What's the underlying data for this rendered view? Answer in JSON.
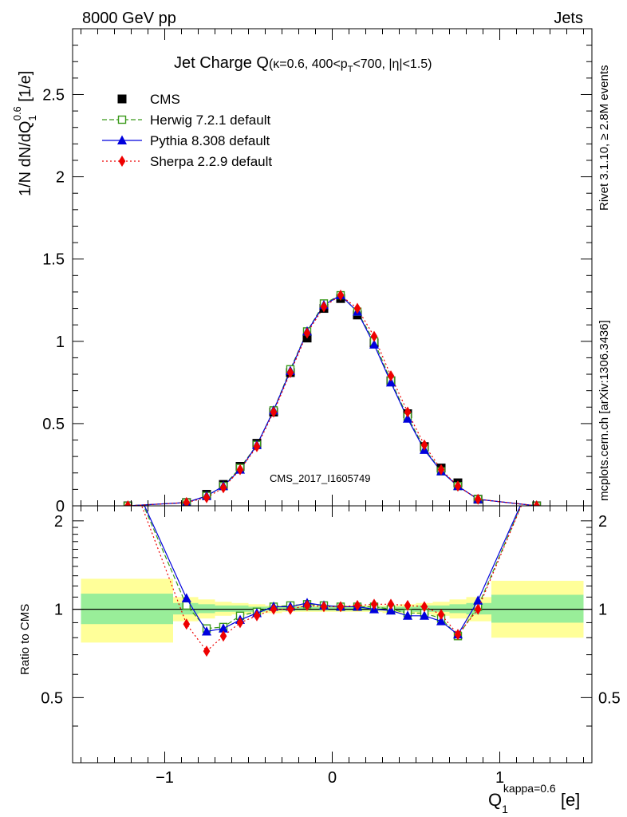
{
  "header": {
    "left": "8000 GeV pp",
    "right": "Jets"
  },
  "side": {
    "rivet": "Rivet 3.1.10, ≥ 2.8M events",
    "mcplots": "mcplots.cern.ch [arXiv:1306.3436]"
  },
  "watermark": "CMS_2017_I1605749",
  "title": {
    "main": "Jet Charge Q",
    "sub": "(κ=0.6, 400<p",
    "sub_sub": "T",
    "sub_tail": "<700, |η|<1.5)"
  },
  "ylabel": {
    "a": "1/N dN/dQ",
    "sub": "1",
    "sup": "0.6",
    "b": " [1/e]"
  },
  "ratio_ylabel": "Ratio to CMS",
  "xlabel": {
    "a": "Q",
    "sub": "1",
    "sup": "kappa=0.6",
    "b": " [e]"
  },
  "legend": [
    {
      "label": "CMS",
      "color": "#000000",
      "marker": "square-filled",
      "line": "none"
    },
    {
      "label": "Herwig 7.2.1 default",
      "color": "#3a9a1a",
      "marker": "square-open",
      "line": "dashed"
    },
    {
      "label": "Pythia 8.308 default",
      "color": "#0000dd",
      "marker": "triangle",
      "line": "solid"
    },
    {
      "label": "Sherpa 2.2.9 default",
      "color": "#ee0000",
      "marker": "diamond",
      "line": "dotted"
    }
  ],
  "chart_data": {
    "type": "line",
    "x_range": [
      -1.55,
      1.55
    ],
    "main_ylim": [
      0,
      2.9
    ],
    "ratio_ylim": [
      0.3,
      2.25
    ],
    "main_yticks": [
      "0",
      "0.5",
      "1",
      "1.5",
      "2",
      "2.5"
    ],
    "ratio_yticks": [
      "0.5",
      "1",
      "2"
    ],
    "xticks": [
      "−1",
      "0",
      "1"
    ],
    "x": [
      -1.22,
      -0.87,
      -0.75,
      -0.65,
      -0.55,
      -0.45,
      -0.35,
      -0.25,
      -0.15,
      -0.05,
      0.05,
      0.15,
      0.25,
      0.35,
      0.45,
      0.55,
      0.65,
      0.75,
      0.87,
      1.22
    ],
    "series": [
      {
        "name": "CMS",
        "values": [
          0.0,
          0.02,
          0.07,
          0.13,
          0.24,
          0.38,
          0.57,
          0.81,
          1.02,
          1.2,
          1.26,
          1.16,
          0.99,
          0.76,
          0.56,
          0.36,
          0.23,
          0.14,
          0.04,
          0.0
        ]
      },
      {
        "name": "Herwig 7.2.1 default",
        "values": [
          0.0,
          0.02,
          0.06,
          0.12,
          0.23,
          0.37,
          0.58,
          0.83,
          1.06,
          1.23,
          1.28,
          1.18,
          1.0,
          0.76,
          0.54,
          0.35,
          0.21,
          0.12,
          0.04,
          0.0
        ]
      },
      {
        "name": "Pythia 8.308 default",
        "values": [
          0.0,
          0.02,
          0.06,
          0.12,
          0.22,
          0.37,
          0.58,
          0.82,
          1.06,
          1.22,
          1.28,
          1.18,
          0.98,
          0.75,
          0.53,
          0.34,
          0.21,
          0.12,
          0.04,
          0.0
        ]
      },
      {
        "name": "Sherpa 2.2.9 default",
        "values": [
          0.0,
          0.02,
          0.05,
          0.11,
          0.22,
          0.36,
          0.57,
          0.81,
          1.05,
          1.21,
          1.28,
          1.2,
          1.03,
          0.79,
          0.57,
          0.37,
          0.22,
          0.12,
          0.04,
          0.0
        ]
      }
    ],
    "ratios": [
      {
        "name": "Herwig 7.2.1 default",
        "values": [
          3.0,
          1.03,
          0.86,
          0.87,
          0.95,
          0.98,
          1.02,
          1.03,
          1.04,
          1.03,
          1.02,
          1.02,
          1.02,
          1.0,
          0.97,
          0.97,
          0.93,
          0.81,
          1.02,
          3.0
        ]
      },
      {
        "name": "Pythia 8.308 default",
        "values": [
          3.0,
          1.09,
          0.84,
          0.86,
          0.92,
          0.97,
          1.02,
          1.02,
          1.05,
          1.03,
          1.02,
          1.02,
          1.0,
          0.99,
          0.95,
          0.95,
          0.91,
          0.82,
          1.07,
          3.0
        ]
      },
      {
        "name": "Sherpa 2.2.9 default",
        "values": [
          3.0,
          0.89,
          0.72,
          0.81,
          0.9,
          0.95,
          1.0,
          1.0,
          1.03,
          1.02,
          1.02,
          1.03,
          1.04,
          1.04,
          1.03,
          1.02,
          0.96,
          0.82,
          1.0,
          3.0
        ]
      }
    ],
    "uncertainty_bands": {
      "edges": [
        -1.5,
        -0.95,
        -0.8,
        -0.7,
        -0.6,
        -0.5,
        -0.4,
        -0.3,
        -0.2,
        -0.1,
        0.0,
        0.1,
        0.2,
        0.3,
        0.4,
        0.5,
        0.6,
        0.7,
        0.8,
        0.95,
        1.5
      ],
      "inner": [
        [
          0.89,
          1.13
        ],
        [
          0.96,
          1.05
        ],
        [
          0.97,
          1.04
        ],
        [
          0.98,
          1.03
        ],
        [
          0.98,
          1.03
        ],
        [
          0.98,
          1.02
        ],
        [
          0.99,
          1.02
        ],
        [
          0.99,
          1.02
        ],
        [
          0.99,
          1.02
        ],
        [
          0.99,
          1.02
        ],
        [
          0.99,
          1.02
        ],
        [
          0.99,
          1.02
        ],
        [
          0.99,
          1.02
        ],
        [
          0.99,
          1.02
        ],
        [
          0.98,
          1.02
        ],
        [
          0.98,
          1.03
        ],
        [
          0.98,
          1.03
        ],
        [
          0.97,
          1.04
        ],
        [
          0.96,
          1.05
        ],
        [
          0.9,
          1.12
        ]
      ],
      "outer": [
        [
          0.77,
          1.27
        ],
        [
          0.91,
          1.1
        ],
        [
          0.93,
          1.08
        ],
        [
          0.95,
          1.06
        ],
        [
          0.96,
          1.05
        ],
        [
          0.97,
          1.04
        ],
        [
          0.97,
          1.03
        ],
        [
          0.98,
          1.03
        ],
        [
          0.98,
          1.03
        ],
        [
          0.98,
          1.03
        ],
        [
          0.98,
          1.03
        ],
        [
          0.98,
          1.03
        ],
        [
          0.98,
          1.03
        ],
        [
          0.97,
          1.03
        ],
        [
          0.97,
          1.04
        ],
        [
          0.96,
          1.05
        ],
        [
          0.95,
          1.06
        ],
        [
          0.93,
          1.08
        ],
        [
          0.91,
          1.1
        ],
        [
          0.8,
          1.25
        ]
      ],
      "inner_color": "#99ee99",
      "outer_color": "#ffff99"
    }
  }
}
